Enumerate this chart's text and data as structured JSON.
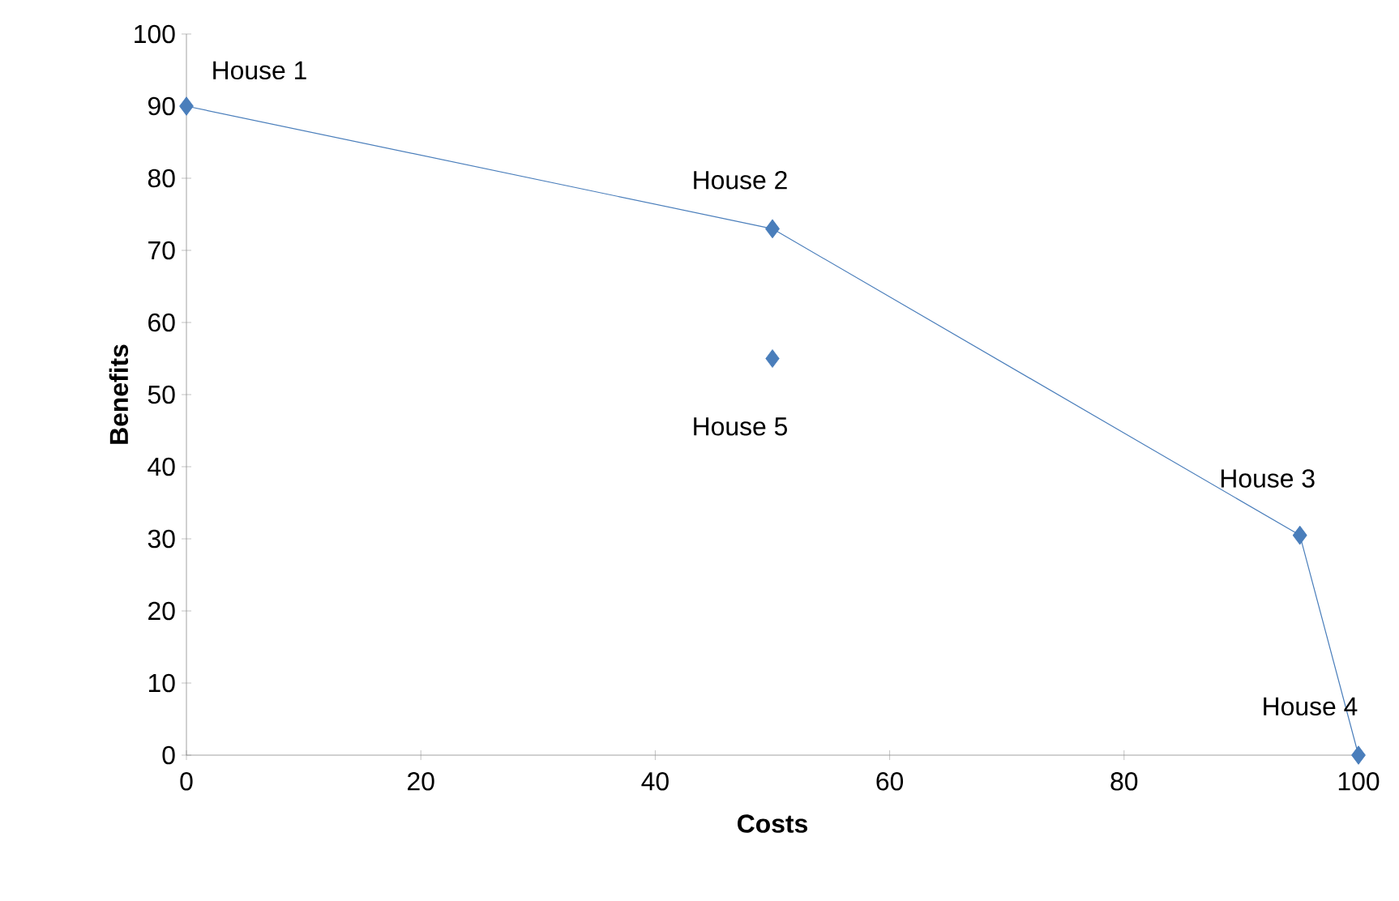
{
  "chart_data": {
    "type": "line",
    "xlabel": "Costs",
    "ylabel": "Benefits",
    "xlim": [
      0,
      100
    ],
    "ylim": [
      0,
      100
    ],
    "xticks": [
      0,
      20,
      40,
      60,
      80,
      100
    ],
    "yticks": [
      0,
      10,
      20,
      30,
      40,
      50,
      60,
      70,
      80,
      90,
      100
    ],
    "grid": false,
    "marker": "diamond",
    "line_style": "solid",
    "series": [
      {
        "color": "#4a7ebb",
        "x": [
          0,
          50,
          95,
          100
        ],
        "values": [
          90,
          73,
          30.5,
          0
        ]
      },
      {
        "type": "scatter",
        "color": "#4a7ebb",
        "x": [
          50
        ],
        "values": [
          55
        ]
      }
    ],
    "annotations": [
      {
        "text": "House 1",
        "x": 0,
        "y": 90
      },
      {
        "text": "House 2",
        "x": 50,
        "y": 73
      },
      {
        "text": "House 3",
        "x": 95,
        "y": 30.5
      },
      {
        "text": "House 4",
        "x": 100,
        "y": 0
      },
      {
        "text": "House 5",
        "x": 50,
        "y": 55
      }
    ]
  }
}
